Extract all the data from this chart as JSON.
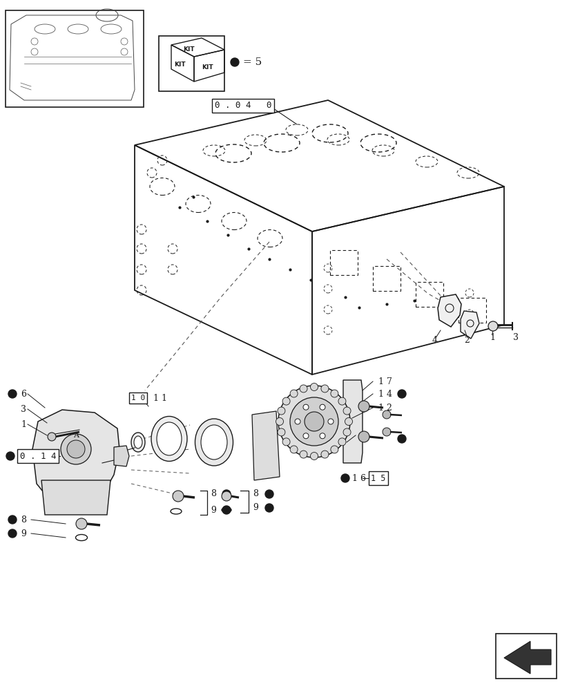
{
  "bg_color": "#ffffff",
  "line_color": "#1a1a1a",
  "dashed_line_color": "#555555",
  "text_color": "#1a1a1a",
  "bullet_color": "#1a1a1a",
  "engine_block_label": "0 . 0 4   0",
  "pump_label": "0 . 1 4",
  "kit_text_top": "KIT",
  "kit_text_bl": "KIT",
  "kit_text_br": "KIT",
  "kit_equal": "= 5"
}
